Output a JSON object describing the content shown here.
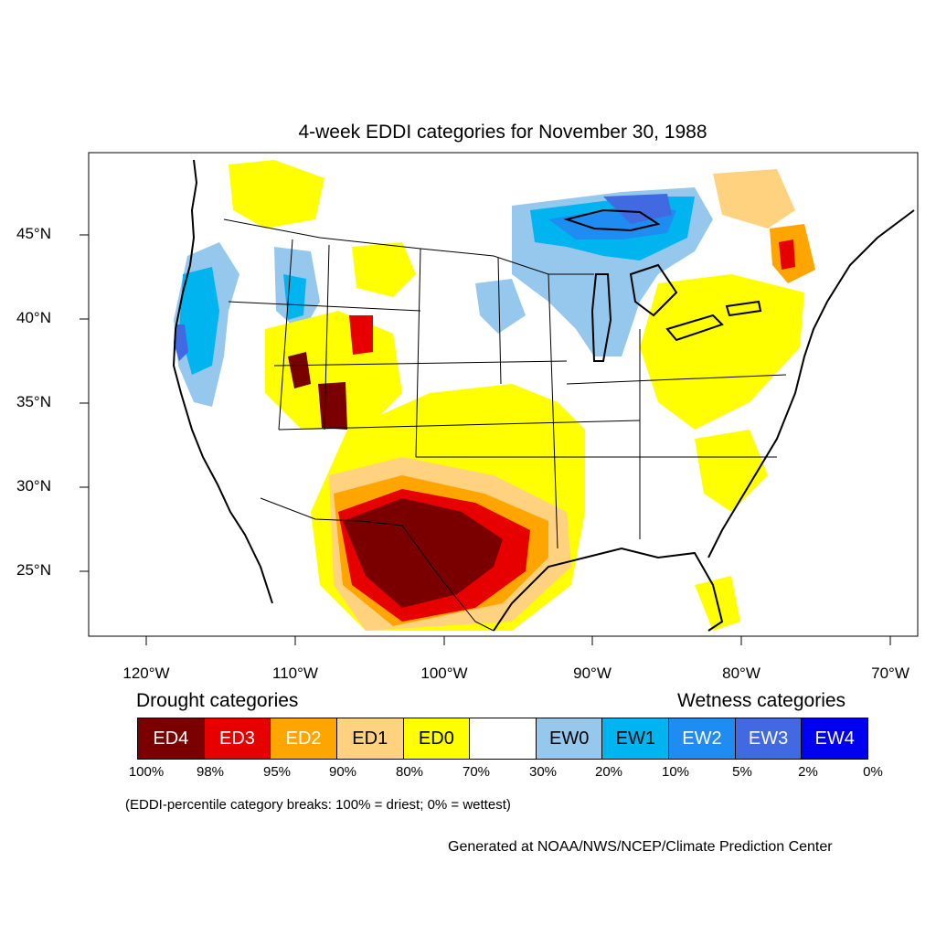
{
  "title": "4-week EDDI categories for November 30, 1988",
  "axes": {
    "lat_ticks": [
      "45°N",
      "40°N",
      "35°N",
      "30°N",
      "25°N"
    ],
    "lon_ticks": [
      "120°W",
      "110°W",
      "100°W",
      "90°W",
      "80°W",
      "70°W"
    ]
  },
  "legend": {
    "drought_label": "Drought categories",
    "wetness_label": "Wetness categories",
    "categories": [
      {
        "label": "ED4",
        "color": "#7a0000",
        "text_color": "#ffffff"
      },
      {
        "label": "ED3",
        "color": "#e60000",
        "text_color": "#ffffff"
      },
      {
        "label": "ED2",
        "color": "#ffa500",
        "text_color": "#ffffff"
      },
      {
        "label": "ED1",
        "color": "#ffd27f",
        "text_color": "#000000"
      },
      {
        "label": "ED0",
        "color": "#ffff00",
        "text_color": "#000000"
      },
      {
        "label": "",
        "color": "#ffffff",
        "text_color": "#000000"
      },
      {
        "label": "EW0",
        "color": "#96c8ee",
        "text_color": "#000000"
      },
      {
        "label": "EW1",
        "color": "#00b4f0",
        "text_color": "#000000"
      },
      {
        "label": "EW2",
        "color": "#1e8cf0",
        "text_color": "#ffffff"
      },
      {
        "label": "EW3",
        "color": "#4169e1",
        "text_color": "#ffffff"
      },
      {
        "label": "EW4",
        "color": "#0000f0",
        "text_color": "#ffffff"
      }
    ],
    "percent_breaks": [
      "100%",
      "98%",
      "95%",
      "90%",
      "80%",
      "70%",
      "30%",
      "20%",
      "10%",
      "5%",
      "2%",
      "0%"
    ]
  },
  "note": "(EDDI-percentile category breaks: 100% = driest; 0% = wettest)",
  "credit": "Generated at NOAA/NWS/NCEP/Climate Prediction Center"
}
